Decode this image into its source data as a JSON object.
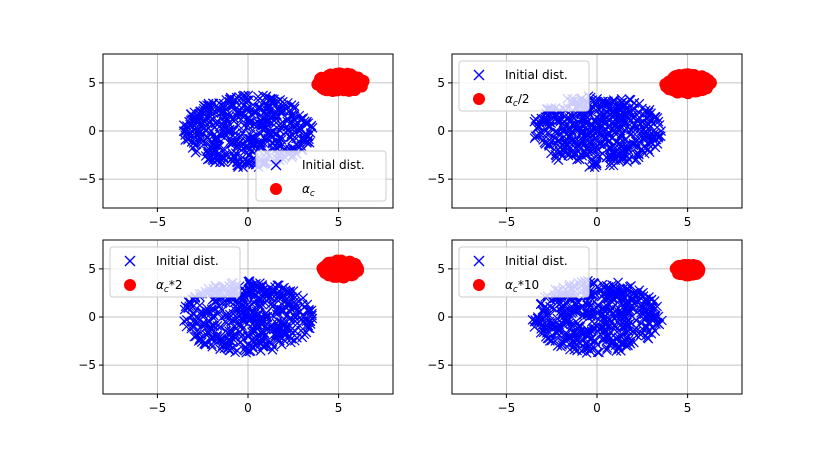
{
  "figure": {
    "background": "#ffffff",
    "layout": "2x2 grid"
  },
  "colors": {
    "initial": "#0000ff",
    "final": "#ff0000",
    "grid": "#b0b0b0",
    "axis": "#000000"
  },
  "chart_data": [
    {
      "type": "scatter",
      "position": "top-left",
      "xlim": [
        -8,
        8
      ],
      "ylim": [
        -8,
        8
      ],
      "x_ticks": [
        -5,
        0,
        5
      ],
      "y_ticks": [
        -5,
        0,
        5
      ],
      "x_tick_labels": [
        "−5",
        "0",
        "5"
      ],
      "y_tick_labels": [
        "−5",
        "0",
        "5"
      ],
      "grid": true,
      "legend_placement": "lower-right",
      "series": [
        {
          "name": "Initial dist.",
          "marker": "x",
          "color": "#0000ff",
          "center": [
            0,
            0
          ],
          "spread": [
            3.6,
            3.8
          ]
        },
        {
          "name": "α",
          "name_sub": "c",
          "name_suffix": "",
          "marker": "o",
          "color": "#ff0000",
          "center": [
            5.1,
            5.0
          ],
          "spread": [
            1.3,
            1.0
          ]
        }
      ]
    },
    {
      "type": "scatter",
      "position": "top-right",
      "xlim": [
        -8,
        8
      ],
      "ylim": [
        -8,
        8
      ],
      "x_ticks": [
        -5,
        0,
        5
      ],
      "y_ticks": [
        -5,
        0,
        5
      ],
      "x_tick_labels": [
        "−5",
        "0",
        "5"
      ],
      "y_tick_labels": [
        "−5",
        "0",
        "5"
      ],
      "grid": true,
      "legend_placement": "upper-left",
      "series": [
        {
          "name": "Initial dist.",
          "marker": "x",
          "color": "#0000ff",
          "center": [
            0,
            0
          ],
          "spread": [
            3.6,
            3.8
          ]
        },
        {
          "name": "α",
          "name_sub": "c",
          "name_suffix": "/2",
          "marker": "o",
          "color": "#ff0000",
          "center": [
            5.0,
            4.9
          ],
          "spread": [
            1.3,
            1.0
          ]
        }
      ]
    },
    {
      "type": "scatter",
      "position": "bottom-left",
      "xlim": [
        -8,
        8
      ],
      "ylim": [
        -8,
        8
      ],
      "x_ticks": [
        -5,
        0,
        5
      ],
      "y_ticks": [
        -5,
        0,
        5
      ],
      "x_tick_labels": [
        "−5",
        "0",
        "5"
      ],
      "y_tick_labels": [
        "−5",
        "0",
        "5"
      ],
      "grid": true,
      "legend_placement": "upper-left",
      "series": [
        {
          "name": "Initial dist.",
          "marker": "x",
          "color": "#0000ff",
          "center": [
            0,
            0
          ],
          "spread": [
            3.6,
            3.8
          ]
        },
        {
          "name": "α",
          "name_sub": "c",
          "name_suffix": "*2",
          "marker": "o",
          "color": "#ff0000",
          "center": [
            5.1,
            5.0
          ],
          "spread": [
            1.0,
            0.9
          ]
        }
      ]
    },
    {
      "type": "scatter",
      "position": "bottom-right",
      "xlim": [
        -8,
        8
      ],
      "ylim": [
        -8,
        8
      ],
      "x_ticks": [
        -5,
        0,
        5
      ],
      "y_ticks": [
        -5,
        0,
        5
      ],
      "x_tick_labels": [
        "−5",
        "0",
        "5"
      ],
      "y_tick_labels": [
        "−5",
        "0",
        "5"
      ],
      "grid": true,
      "legend_placement": "upper-left",
      "series": [
        {
          "name": "Initial dist.",
          "marker": "x",
          "color": "#0000ff",
          "center": [
            0,
            0
          ],
          "spread": [
            3.6,
            3.8
          ]
        },
        {
          "name": "α",
          "name_sub": "c",
          "name_suffix": "*10",
          "marker": "o",
          "color": "#ff0000",
          "center": [
            5.0,
            4.9
          ],
          "spread": [
            0.7,
            0.6
          ]
        }
      ]
    }
  ]
}
